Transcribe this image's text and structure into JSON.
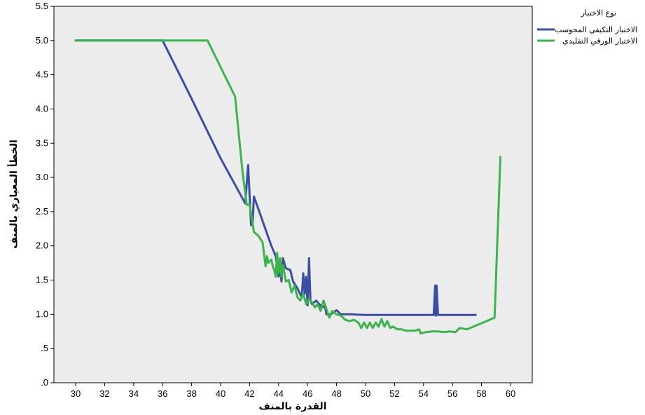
{
  "chart_data": {
    "type": "line",
    "xlabel": "القدرة بالمنف",
    "ylabel": "الخطأ المعياري بالمنف",
    "xlim": [
      28.5,
      61.5
    ],
    "ylim": [
      0,
      5.5
    ],
    "x_ticks": [
      "30",
      "32",
      "34",
      "36",
      "38",
      "40",
      "42",
      "44",
      "46",
      "48",
      "50",
      "52",
      "54",
      "56",
      "58",
      "60"
    ],
    "y_ticks": [
      ".0",
      ".5",
      "1.0",
      "1.5",
      "2.0",
      "2.5",
      "3.0",
      "3.5",
      "4.0",
      "4.5",
      "5.0",
      "5.5"
    ],
    "grid": false,
    "background": "#ececec",
    "legend_position": "top-right",
    "legend_title": "نوع الاختبار",
    "series": [
      {
        "name": "الاختبار التكيفي المحوسب",
        "color": "#3a4fa3",
        "x": [
          30,
          36,
          38,
          40,
          41.7,
          41.9,
          42.1,
          42.2,
          42.3,
          42.5,
          43,
          43.5,
          43.8,
          44.0,
          44.1,
          44.2,
          44.3,
          44.5,
          44.8,
          45.0,
          45.3,
          45.6,
          45.7,
          45.8,
          45.9,
          46.0,
          46.1,
          46.2,
          46.3,
          46.6,
          47.0,
          47.2,
          47.3,
          47.6,
          48.0,
          48.3,
          49.0,
          50,
          51,
          52,
          53,
          54,
          54.7,
          54.8,
          54.85,
          54.9,
          55.0,
          56,
          57,
          57.6
        ],
        "y": [
          5.0,
          5.0,
          4.15,
          3.28,
          2.62,
          3.18,
          2.3,
          2.3,
          2.72,
          2.6,
          2.3,
          2.0,
          1.85,
          1.55,
          1.72,
          1.48,
          1.82,
          1.67,
          1.65,
          1.48,
          1.38,
          1.25,
          1.6,
          1.3,
          1.55,
          1.13,
          1.82,
          1.2,
          1.15,
          1.2,
          1.1,
          1.12,
          1.0,
          1.0,
          1.06,
          1.0,
          1.0,
          0.99,
          0.99,
          0.99,
          0.99,
          0.99,
          0.99,
          1.42,
          0.98,
          1.42,
          0.99,
          0.99,
          0.99,
          0.99
        ]
      },
      {
        "name": "الاختبار الورقي التقليدي",
        "color": "#39b54a",
        "x": [
          30,
          39.1,
          41.0,
          41.5,
          41.8,
          42.0,
          42.3,
          42.6,
          42.9,
          43.1,
          43.2,
          43.3,
          43.5,
          43.6,
          43.7,
          43.8,
          43.9,
          44.0,
          44.1,
          44.2,
          44.3,
          44.5,
          44.7,
          44.9,
          45.1,
          45.3,
          45.5,
          45.7,
          45.9,
          46.1,
          46.3,
          46.5,
          46.7,
          46.9,
          47.1,
          47.3,
          47.5,
          47.7,
          48.0,
          48.3,
          48.6,
          48.9,
          49.2,
          49.5,
          49.7,
          49.9,
          50.1,
          50.3,
          50.5,
          50.7,
          50.9,
          51.1,
          51.3,
          51.5,
          51.7,
          51.9,
          52.2,
          52.5,
          52.8,
          53.1,
          53.4,
          53.7,
          53.8,
          54.2,
          54.6,
          55.0,
          55.4,
          55.8,
          56.2,
          56.5,
          57.0,
          58.9,
          59.3
        ],
        "y": [
          5.0,
          5.0,
          4.18,
          3.1,
          2.6,
          2.6,
          2.2,
          2.15,
          2.05,
          1.7,
          1.85,
          1.75,
          1.8,
          1.7,
          1.65,
          1.55,
          1.9,
          1.6,
          1.82,
          1.55,
          1.72,
          1.48,
          1.5,
          1.32,
          1.42,
          1.25,
          1.2,
          1.3,
          1.15,
          1.22,
          1.18,
          1.1,
          1.15,
          1.05,
          1.2,
          1.08,
          0.95,
          1.05,
          1.0,
          0.98,
          0.92,
          0.9,
          0.92,
          0.88,
          0.8,
          0.88,
          0.8,
          0.88,
          0.8,
          0.88,
          0.82,
          0.93,
          0.82,
          0.9,
          0.8,
          0.82,
          0.78,
          0.78,
          0.76,
          0.76,
          0.76,
          0.78,
          0.72,
          0.74,
          0.75,
          0.75,
          0.74,
          0.75,
          0.74,
          0.8,
          0.78,
          0.95,
          3.3
        ]
      }
    ]
  }
}
